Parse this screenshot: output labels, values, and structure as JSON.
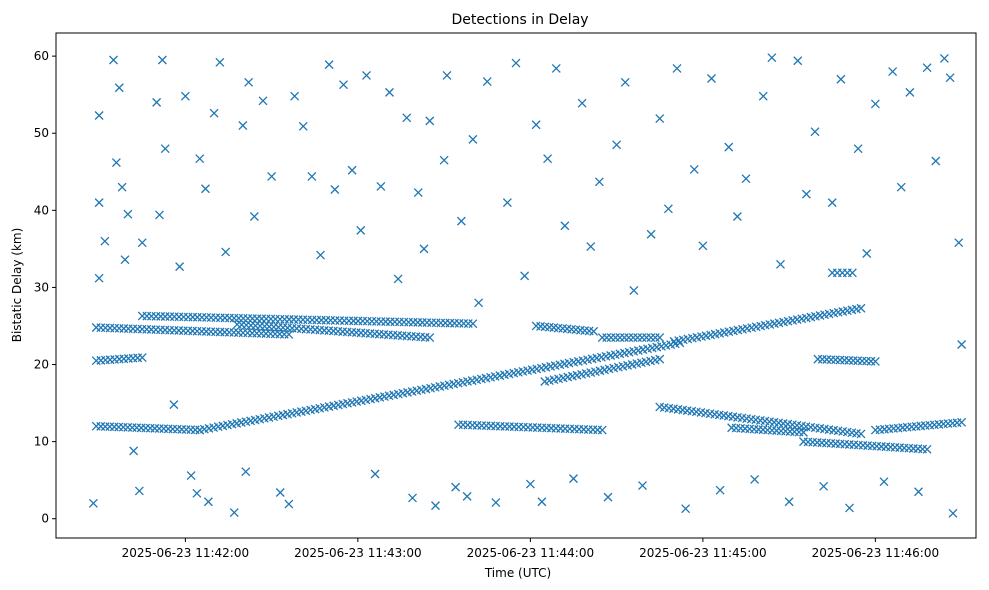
{
  "chart_data": {
    "type": "scatter",
    "title": "Detections in Delay",
    "xlabel": "Time (UTC)",
    "ylabel": "Bistatic Delay (km)",
    "xlim": [
      "2025-06-23 11:41:15",
      "2025-06-23 11:46:35"
    ],
    "ylim": [
      -2.5,
      63
    ],
    "xticks": [
      "2025-06-23 11:42:00",
      "2025-06-23 11:43:00",
      "2025-06-23 11:44:00",
      "2025-06-23 11:45:00",
      "2025-06-23 11:46:00"
    ],
    "yticks": [
      0,
      10,
      20,
      30,
      40,
      50,
      60
    ],
    "grid": false,
    "marker": "x",
    "color": "#1f77b4",
    "tracks": [
      {
        "start": "2025-06-23 11:41:29",
        "end": "2025-06-23 11:42:36",
        "y_start": 24.8,
        "y_end": 23.9
      },
      {
        "start": "2025-06-23 11:41:45",
        "end": "2025-06-23 11:43:40",
        "y_start": 26.3,
        "y_end": 25.3
      },
      {
        "start": "2025-06-23 11:42:18",
        "end": "2025-06-23 11:43:25",
        "y_start": 25.2,
        "y_end": 23.5
      },
      {
        "start": "2025-06-23 11:41:29",
        "end": "2025-06-23 11:41:45",
        "y_start": 20.5,
        "y_end": 20.9
      },
      {
        "start": "2025-06-23 11:41:29",
        "end": "2025-06-23 11:42:05",
        "y_start": 12.0,
        "y_end": 11.5
      },
      {
        "start": "2025-06-23 11:42:05",
        "end": "2025-06-23 11:44:52",
        "y_start": 11.5,
        "y_end": 22.8
      },
      {
        "start": "2025-06-23 11:43:35",
        "end": "2025-06-23 11:44:25",
        "y_start": 12.2,
        "y_end": 11.5
      },
      {
        "start": "2025-06-23 11:44:02",
        "end": "2025-06-23 11:44:22",
        "y_start": 25.0,
        "y_end": 24.3
      },
      {
        "start": "2025-06-23 11:44:25",
        "end": "2025-06-23 11:44:45",
        "y_start": 23.5,
        "y_end": 23.5
      },
      {
        "start": "2025-06-23 11:44:05",
        "end": "2025-06-23 11:44:45",
        "y_start": 17.8,
        "y_end": 20.7
      },
      {
        "start": "2025-06-23 11:44:45",
        "end": "2025-06-23 11:45:55",
        "y_start": 14.5,
        "y_end": 11.0
      },
      {
        "start": "2025-06-23 11:45:10",
        "end": "2025-06-23 11:45:35",
        "y_start": 11.8,
        "y_end": 11.2
      },
      {
        "start": "2025-06-23 11:45:35",
        "end": "2025-06-23 11:46:18",
        "y_start": 10.0,
        "y_end": 9.0
      },
      {
        "start": "2025-06-23 11:46:00",
        "end": "2025-06-23 11:46:30",
        "y_start": 11.5,
        "y_end": 12.5
      },
      {
        "start": "2025-06-23 11:44:50",
        "end": "2025-06-23 11:45:55",
        "y_start": 23.0,
        "y_end": 27.3
      },
      {
        "start": "2025-06-23 11:45:40",
        "end": "2025-06-23 11:46:00",
        "y_start": 20.7,
        "y_end": 20.4
      },
      {
        "start": "2025-06-23 11:45:45",
        "end": "2025-06-23 11:45:52",
        "y_start": 31.9,
        "y_end": 31.9
      }
    ],
    "scattered_points": [
      {
        "t": "2025-06-23 11:41:28",
        "y": 2.0
      },
      {
        "t": "2025-06-23 11:41:30",
        "y": 52.3
      },
      {
        "t": "2025-06-23 11:41:30",
        "y": 41.0
      },
      {
        "t": "2025-06-23 11:41:30",
        "y": 31.2
      },
      {
        "t": "2025-06-23 11:41:32",
        "y": 36.0
      },
      {
        "t": "2025-06-23 11:41:35",
        "y": 59.5
      },
      {
        "t": "2025-06-23 11:41:36",
        "y": 46.2
      },
      {
        "t": "2025-06-23 11:41:37",
        "y": 55.9
      },
      {
        "t": "2025-06-23 11:41:38",
        "y": 43.0
      },
      {
        "t": "2025-06-23 11:41:39",
        "y": 33.6
      },
      {
        "t": "2025-06-23 11:41:40",
        "y": 39.5
      },
      {
        "t": "2025-06-23 11:41:42",
        "y": 8.8
      },
      {
        "t": "2025-06-23 11:41:44",
        "y": 3.6
      },
      {
        "t": "2025-06-23 11:41:45",
        "y": 35.8
      },
      {
        "t": "2025-06-23 11:41:50",
        "y": 54.0
      },
      {
        "t": "2025-06-23 11:41:51",
        "y": 39.4
      },
      {
        "t": "2025-06-23 11:41:52",
        "y": 59.5
      },
      {
        "t": "2025-06-23 11:41:53",
        "y": 48.0
      },
      {
        "t": "2025-06-23 11:41:56",
        "y": 14.8
      },
      {
        "t": "2025-06-23 11:41:58",
        "y": 32.7
      },
      {
        "t": "2025-06-23 11:42:00",
        "y": 54.8
      },
      {
        "t": "2025-06-23 11:42:02",
        "y": 5.6
      },
      {
        "t": "2025-06-23 11:42:04",
        "y": 3.3
      },
      {
        "t": "2025-06-23 11:42:05",
        "y": 46.7
      },
      {
        "t": "2025-06-23 11:42:07",
        "y": 42.8
      },
      {
        "t": "2025-06-23 11:42:08",
        "y": 2.2
      },
      {
        "t": "2025-06-23 11:42:10",
        "y": 52.6
      },
      {
        "t": "2025-06-23 11:42:12",
        "y": 59.2
      },
      {
        "t": "2025-06-23 11:42:14",
        "y": 34.6
      },
      {
        "t": "2025-06-23 11:42:17",
        "y": 0.8
      },
      {
        "t": "2025-06-23 11:42:20",
        "y": 51.0
      },
      {
        "t": "2025-06-23 11:42:21",
        "y": 6.1
      },
      {
        "t": "2025-06-23 11:42:22",
        "y": 56.6
      },
      {
        "t": "2025-06-23 11:42:24",
        "y": 39.2
      },
      {
        "t": "2025-06-23 11:42:27",
        "y": 54.2
      },
      {
        "t": "2025-06-23 11:42:30",
        "y": 44.4
      },
      {
        "t": "2025-06-23 11:42:33",
        "y": 3.4
      },
      {
        "t": "2025-06-23 11:42:36",
        "y": 1.9
      },
      {
        "t": "2025-06-23 11:42:38",
        "y": 54.8
      },
      {
        "t": "2025-06-23 11:42:41",
        "y": 50.9
      },
      {
        "t": "2025-06-23 11:42:44",
        "y": 44.4
      },
      {
        "t": "2025-06-23 11:42:47",
        "y": 34.2
      },
      {
        "t": "2025-06-23 11:42:50",
        "y": 58.9
      },
      {
        "t": "2025-06-23 11:42:52",
        "y": 42.7
      },
      {
        "t": "2025-06-23 11:42:55",
        "y": 56.3
      },
      {
        "t": "2025-06-23 11:42:58",
        "y": 45.2
      },
      {
        "t": "2025-06-23 11:43:01",
        "y": 37.4
      },
      {
        "t": "2025-06-23 11:43:03",
        "y": 57.5
      },
      {
        "t": "2025-06-23 11:43:06",
        "y": 5.8
      },
      {
        "t": "2025-06-23 11:43:08",
        "y": 43.1
      },
      {
        "t": "2025-06-23 11:43:11",
        "y": 55.3
      },
      {
        "t": "2025-06-23 11:43:14",
        "y": 31.1
      },
      {
        "t": "2025-06-23 11:43:17",
        "y": 52.0
      },
      {
        "t": "2025-06-23 11:43:19",
        "y": 2.7
      },
      {
        "t": "2025-06-23 11:43:21",
        "y": 42.3
      },
      {
        "t": "2025-06-23 11:43:23",
        "y": 35.0
      },
      {
        "t": "2025-06-23 11:43:25",
        "y": 51.6
      },
      {
        "t": "2025-06-23 11:43:27",
        "y": 1.7
      },
      {
        "t": "2025-06-23 11:43:30",
        "y": 46.5
      },
      {
        "t": "2025-06-23 11:43:31",
        "y": 57.5
      },
      {
        "t": "2025-06-23 11:43:34",
        "y": 4.1
      },
      {
        "t": "2025-06-23 11:43:36",
        "y": 38.6
      },
      {
        "t": "2025-06-23 11:43:38",
        "y": 2.9
      },
      {
        "t": "2025-06-23 11:43:40",
        "y": 49.2
      },
      {
        "t": "2025-06-23 11:43:42",
        "y": 28.0
      },
      {
        "t": "2025-06-23 11:43:45",
        "y": 56.7
      },
      {
        "t": "2025-06-23 11:43:48",
        "y": 2.1
      },
      {
        "t": "2025-06-23 11:43:52",
        "y": 41.0
      },
      {
        "t": "2025-06-23 11:43:55",
        "y": 59.1
      },
      {
        "t": "2025-06-23 11:43:58",
        "y": 31.5
      },
      {
        "t": "2025-06-23 11:44:00",
        "y": 4.5
      },
      {
        "t": "2025-06-23 11:44:02",
        "y": 51.1
      },
      {
        "t": "2025-06-23 11:44:04",
        "y": 2.2
      },
      {
        "t": "2025-06-23 11:44:06",
        "y": 46.7
      },
      {
        "t": "2025-06-23 11:44:09",
        "y": 58.4
      },
      {
        "t": "2025-06-23 11:44:12",
        "y": 38.0
      },
      {
        "t": "2025-06-23 11:44:15",
        "y": 5.2
      },
      {
        "t": "2025-06-23 11:44:18",
        "y": 53.9
      },
      {
        "t": "2025-06-23 11:44:21",
        "y": 35.3
      },
      {
        "t": "2025-06-23 11:44:24",
        "y": 43.7
      },
      {
        "t": "2025-06-23 11:44:27",
        "y": 2.8
      },
      {
        "t": "2025-06-23 11:44:30",
        "y": 48.5
      },
      {
        "t": "2025-06-23 11:44:33",
        "y": 56.6
      },
      {
        "t": "2025-06-23 11:44:36",
        "y": 29.6
      },
      {
        "t": "2025-06-23 11:44:39",
        "y": 4.3
      },
      {
        "t": "2025-06-23 11:44:42",
        "y": 36.9
      },
      {
        "t": "2025-06-23 11:44:45",
        "y": 51.9
      },
      {
        "t": "2025-06-23 11:44:48",
        "y": 40.2
      },
      {
        "t": "2025-06-23 11:44:51",
        "y": 58.4
      },
      {
        "t": "2025-06-23 11:44:54",
        "y": 1.3
      },
      {
        "t": "2025-06-23 11:44:57",
        "y": 45.3
      },
      {
        "t": "2025-06-23 11:45:00",
        "y": 35.4
      },
      {
        "t": "2025-06-23 11:45:03",
        "y": 57.1
      },
      {
        "t": "2025-06-23 11:45:06",
        "y": 3.7
      },
      {
        "t": "2025-06-23 11:45:09",
        "y": 48.2
      },
      {
        "t": "2025-06-23 11:45:12",
        "y": 39.2
      },
      {
        "t": "2025-06-23 11:45:15",
        "y": 44.1
      },
      {
        "t": "2025-06-23 11:45:18",
        "y": 5.1
      },
      {
        "t": "2025-06-23 11:45:21",
        "y": 54.8
      },
      {
        "t": "2025-06-23 11:45:24",
        "y": 59.8
      },
      {
        "t": "2025-06-23 11:45:27",
        "y": 33.0
      },
      {
        "t": "2025-06-23 11:45:30",
        "y": 2.2
      },
      {
        "t": "2025-06-23 11:45:33",
        "y": 59.4
      },
      {
        "t": "2025-06-23 11:45:36",
        "y": 42.1
      },
      {
        "t": "2025-06-23 11:45:39",
        "y": 50.2
      },
      {
        "t": "2025-06-23 11:45:42",
        "y": 4.2
      },
      {
        "t": "2025-06-23 11:45:45",
        "y": 41.0
      },
      {
        "t": "2025-06-23 11:45:48",
        "y": 57.0
      },
      {
        "t": "2025-06-23 11:45:51",
        "y": 1.4
      },
      {
        "t": "2025-06-23 11:45:54",
        "y": 48.0
      },
      {
        "t": "2025-06-23 11:45:57",
        "y": 34.4
      },
      {
        "t": "2025-06-23 11:46:00",
        "y": 53.8
      },
      {
        "t": "2025-06-23 11:46:03",
        "y": 4.8
      },
      {
        "t": "2025-06-23 11:46:06",
        "y": 58.0
      },
      {
        "t": "2025-06-23 11:46:09",
        "y": 43.0
      },
      {
        "t": "2025-06-23 11:46:12",
        "y": 55.3
      },
      {
        "t": "2025-06-23 11:46:15",
        "y": 3.5
      },
      {
        "t": "2025-06-23 11:46:18",
        "y": 58.5
      },
      {
        "t": "2025-06-23 11:46:21",
        "y": 46.4
      },
      {
        "t": "2025-06-23 11:46:24",
        "y": 59.7
      },
      {
        "t": "2025-06-23 11:46:26",
        "y": 57.2
      },
      {
        "t": "2025-06-23 11:46:27",
        "y": 0.7
      },
      {
        "t": "2025-06-23 11:46:29",
        "y": 35.8
      },
      {
        "t": "2025-06-23 11:46:30",
        "y": 22.6
      }
    ]
  }
}
